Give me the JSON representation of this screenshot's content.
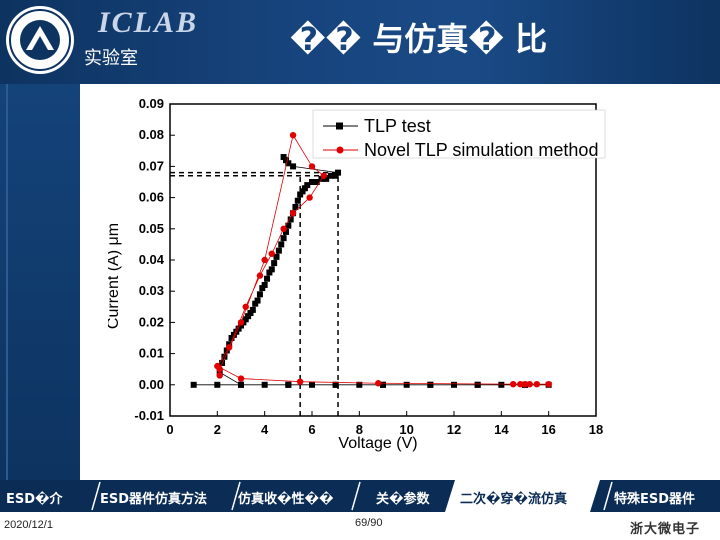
{
  "header": {
    "lab_name": "ICLAB",
    "lab_subtitle": "实验室",
    "slide_title": "�� 与仿真� 比",
    "logo_icon": "zju-seal-icon"
  },
  "chart_data": {
    "type": "scatter",
    "xlabel": "Voltage (V)",
    "ylabel": "Current (A) μm",
    "xlim": [
      0,
      18
    ],
    "ylim": [
      -0.01,
      0.09
    ],
    "xticks": [
      "0",
      "2",
      "4",
      "6",
      "8",
      "10",
      "12",
      "14",
      "16",
      "18"
    ],
    "yticks": [
      "0.09",
      "0.08",
      "0.07",
      "0.06",
      "0.05",
      "0.04",
      "0.03",
      "0.02",
      "0.01",
      "0.00",
      "-0.01"
    ],
    "legend_position": "top-right",
    "series": [
      {
        "name": "TLP test",
        "color": "#000000",
        "marker": "square",
        "x": [
          1.0,
          2.0,
          3.0,
          4.0,
          5.0,
          6.0,
          7.0,
          8.0,
          9.0,
          10.0,
          11.0,
          12.0,
          13.0,
          14.0,
          15.0,
          16.0,
          15.0,
          13.0,
          11.0,
          9.0,
          7.0,
          5.0,
          3.0,
          2.1,
          2.2,
          2.3,
          2.4,
          2.5,
          2.6,
          2.7,
          2.8,
          2.9,
          3.0,
          3.1,
          3.2,
          3.3,
          3.4,
          3.5,
          3.6,
          3.7,
          3.8,
          3.9,
          4.0,
          4.1,
          4.2,
          4.3,
          4.4,
          4.5,
          4.6,
          4.7,
          4.8,
          4.9,
          5.0,
          5.1,
          5.2,
          5.3,
          5.4,
          5.5,
          5.6,
          5.7,
          5.8,
          6.0,
          6.2,
          6.4,
          6.6,
          6.8,
          7.0,
          7.1,
          5.2,
          5.0,
          4.9,
          4.8
        ],
        "y": [
          0.0,
          0.0,
          0.0,
          0.0,
          0.0,
          0.0,
          0.0,
          0.0,
          0.0,
          0.0,
          0.0,
          0.0,
          0.0,
          0.0,
          0.0,
          0.0,
          0.0,
          0.0,
          0.0,
          0.0,
          0.0,
          0.0,
          0.0,
          0.004,
          0.007,
          0.009,
          0.011,
          0.013,
          0.015,
          0.016,
          0.017,
          0.018,
          0.019,
          0.02,
          0.021,
          0.022,
          0.023,
          0.024,
          0.026,
          0.027,
          0.029,
          0.031,
          0.032,
          0.034,
          0.036,
          0.037,
          0.039,
          0.041,
          0.043,
          0.045,
          0.047,
          0.049,
          0.051,
          0.053,
          0.055,
          0.057,
          0.059,
          0.061,
          0.062,
          0.063,
          0.064,
          0.065,
          0.065,
          0.066,
          0.066,
          0.067,
          0.067,
          0.068,
          0.07,
          0.071,
          0.072,
          0.073
        ]
      },
      {
        "name": "Novel TLP simulation method",
        "color": "#e00000",
        "marker": "circle",
        "x": [
          2.1,
          2.1,
          3.0,
          4.0,
          5.2,
          6.0,
          6.5,
          5.9,
          5.2,
          4.8,
          4.3,
          3.8,
          3.2,
          2.5,
          2.0,
          3.0,
          5.5,
          8.8,
          14.5,
          14.8,
          15.0,
          15.2,
          15.5,
          16.0
        ],
        "y": [
          0.003,
          0.005,
          0.02,
          0.04,
          0.08,
          0.07,
          0.067,
          0.06,
          0.055,
          0.05,
          0.042,
          0.035,
          0.025,
          0.012,
          0.006,
          0.002,
          0.001,
          0.0005,
          0.0002,
          0.0002,
          0.0002,
          0.0002,
          0.0002,
          0.0002
        ]
      }
    ],
    "reference_lines": {
      "vertical_x": [
        5.5,
        7.1
      ],
      "horizontal_y": [
        0.067,
        0.068
      ]
    },
    "colors": {
      "plot_border": "#000000",
      "ref_line": "#000000"
    }
  },
  "nav": {
    "items": [
      "ESD�介",
      "ESD器件仿真方法",
      "仿真收�性��",
      "关�参数",
      "二次�穿�流仿真",
      "特殊ESD器件"
    ],
    "active_index": 4,
    "active_color": "#ffffff",
    "bar_color": "#0a2c55"
  },
  "footer": {
    "date": "2020/12/1",
    "page": "69/90",
    "brand": "浙大微电子"
  }
}
